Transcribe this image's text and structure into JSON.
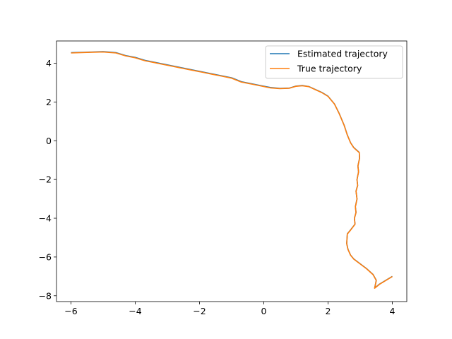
{
  "chart_data": {
    "type": "line",
    "title": "",
    "xlabel": "",
    "ylabel": "",
    "xlim": [
      -6.45,
      4.45
    ],
    "ylim": [
      -8.3,
      5.15
    ],
    "x_ticks": [
      -6,
      -4,
      -2,
      0,
      2,
      4
    ],
    "y_ticks": [
      -8,
      -6,
      -4,
      -2,
      0,
      2,
      4
    ],
    "x_tick_labels": [
      "−6",
      "−4",
      "−2",
      "0",
      "2",
      "4"
    ],
    "y_tick_labels": [
      "−8",
      "−6",
      "−4",
      "−2",
      "0",
      "2",
      "4"
    ],
    "grid": false,
    "legend_position": "upper right",
    "series": [
      {
        "name": "Estimated trajectory",
        "color": "#1f77b4",
        "x": [
          -6.0,
          -5.5,
          -5.0,
          -4.6,
          -4.3,
          -4.0,
          -3.7,
          -3.4,
          -3.1,
          -2.8,
          -2.5,
          -2.2,
          -1.9,
          -1.6,
          -1.3,
          -1.0,
          -0.7,
          -0.4,
          -0.1,
          0.2,
          0.5,
          0.8,
          1.0,
          1.2,
          1.4,
          1.6,
          1.8,
          2.0,
          2.2,
          2.35,
          2.5,
          2.6,
          2.7,
          2.8,
          2.9,
          2.97,
          2.98,
          2.93,
          2.95,
          2.9,
          2.92,
          2.87,
          2.9,
          2.85,
          2.87,
          2.82,
          2.84,
          2.7,
          2.6,
          2.58,
          2.62,
          2.7,
          2.8,
          3.0,
          3.2,
          3.4,
          3.5,
          3.45,
          3.6,
          3.8,
          4.0
        ],
        "y": [
          4.55,
          4.57,
          4.6,
          4.55,
          4.4,
          4.3,
          4.15,
          4.05,
          3.95,
          3.85,
          3.75,
          3.65,
          3.55,
          3.45,
          3.35,
          3.25,
          3.05,
          2.95,
          2.85,
          2.75,
          2.7,
          2.72,
          2.82,
          2.85,
          2.8,
          2.65,
          2.5,
          2.3,
          1.9,
          1.4,
          0.8,
          0.3,
          -0.1,
          -0.35,
          -0.5,
          -0.6,
          -0.9,
          -1.3,
          -1.6,
          -2.0,
          -2.3,
          -2.6,
          -3.0,
          -3.4,
          -3.7,
          -4.0,
          -4.3,
          -4.6,
          -4.8,
          -5.3,
          -5.6,
          -5.9,
          -6.1,
          -6.35,
          -6.6,
          -6.9,
          -7.2,
          -7.6,
          -7.4,
          -7.2,
          -7.0
        ]
      },
      {
        "name": "True trajectory",
        "color": "#ff7f0e",
        "x": [
          -6.0,
          -5.5,
          -5.0,
          -4.6,
          -4.3,
          -4.0,
          -3.7,
          -3.4,
          -3.1,
          -2.8,
          -2.5,
          -2.2,
          -1.9,
          -1.6,
          -1.3,
          -1.0,
          -0.7,
          -0.4,
          -0.1,
          0.2,
          0.5,
          0.8,
          1.0,
          1.2,
          1.4,
          1.6,
          1.8,
          2.0,
          2.2,
          2.35,
          2.5,
          2.6,
          2.7,
          2.8,
          2.9,
          2.97,
          2.98,
          2.93,
          2.95,
          2.9,
          2.92,
          2.87,
          2.9,
          2.85,
          2.87,
          2.82,
          2.84,
          2.7,
          2.6,
          2.58,
          2.62,
          2.7,
          2.8,
          3.0,
          3.2,
          3.4,
          3.5,
          3.45,
          3.6,
          3.8,
          4.0
        ],
        "y": [
          4.53,
          4.56,
          4.58,
          4.53,
          4.38,
          4.28,
          4.13,
          4.03,
          3.93,
          3.83,
          3.73,
          3.63,
          3.53,
          3.43,
          3.33,
          3.23,
          3.03,
          2.93,
          2.83,
          2.73,
          2.69,
          2.71,
          2.81,
          2.84,
          2.79,
          2.64,
          2.49,
          2.29,
          1.89,
          1.39,
          0.79,
          0.29,
          -0.11,
          -0.36,
          -0.51,
          -0.61,
          -0.91,
          -1.31,
          -1.61,
          -2.01,
          -2.31,
          -2.61,
          -3.01,
          -3.41,
          -3.71,
          -4.01,
          -4.31,
          -4.61,
          -4.81,
          -5.31,
          -5.61,
          -5.91,
          -6.11,
          -6.36,
          -6.61,
          -6.91,
          -7.21,
          -7.61,
          -7.41,
          -7.21,
          -7.01
        ]
      }
    ]
  }
}
